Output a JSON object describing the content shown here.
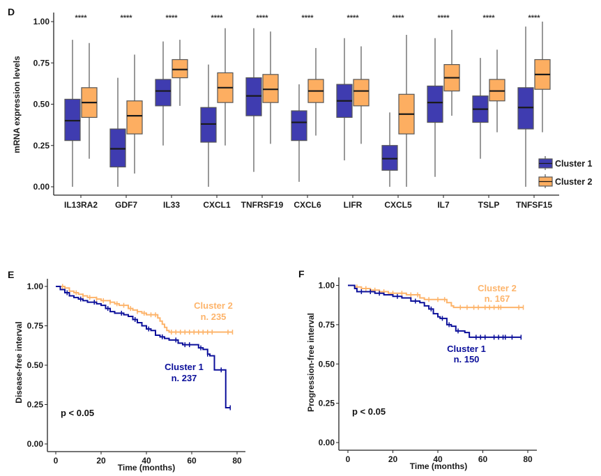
{
  "colors": {
    "cluster1": "#3f3cb0",
    "cluster2": "#fdae61",
    "km_cluster1": "#0b0f9a",
    "km_cluster2": "#fdb46b"
  },
  "chart_data": [
    {
      "id": "D",
      "type": "box",
      "panel_label": "D",
      "title": "",
      "xlabel": "",
      "ylabel": "mRNA expression levels",
      "ylim": [
        0,
        1
      ],
      "yticks": [
        "0.00",
        "0.25",
        "0.50",
        "0.75",
        "1.00"
      ],
      "ytick_values": [
        0,
        0.25,
        0.5,
        0.75,
        1.0
      ],
      "legend": {
        "position": "bottom-right",
        "entries": [
          "Cluster 1",
          "Cluster 2"
        ]
      },
      "categories": [
        "IL13RA2",
        "GDF7",
        "IL33",
        "CXCL1",
        "TNFRSF19",
        "CXCL6",
        "LIFR",
        "CXCL5",
        "IL7",
        "TSLP",
        "TNFSF15"
      ],
      "significance": [
        "****",
        "****",
        "****",
        "****",
        "****",
        "****",
        "****",
        "****",
        "****",
        "****",
        "****"
      ],
      "series": [
        {
          "name": "Cluster 1",
          "boxes": [
            {
              "min": 0.0,
              "q1": 0.28,
              "median": 0.4,
              "q3": 0.53,
              "max": 0.89
            },
            {
              "min": 0.0,
              "q1": 0.12,
              "median": 0.23,
              "q3": 0.35,
              "max": 0.66
            },
            {
              "min": 0.25,
              "q1": 0.49,
              "median": 0.58,
              "q3": 0.65,
              "max": 0.88
            },
            {
              "min": 0.0,
              "q1": 0.27,
              "median": 0.38,
              "q3": 0.48,
              "max": 0.74
            },
            {
              "min": 0.09,
              "q1": 0.43,
              "median": 0.55,
              "q3": 0.66,
              "max": 0.96
            },
            {
              "min": 0.03,
              "q1": 0.28,
              "median": 0.39,
              "q3": 0.46,
              "max": 0.62
            },
            {
              "min": 0.16,
              "q1": 0.42,
              "median": 0.52,
              "q3": 0.62,
              "max": 0.9
            },
            {
              "min": 0.0,
              "q1": 0.1,
              "median": 0.17,
              "q3": 0.25,
              "max": 0.45
            },
            {
              "min": 0.06,
              "q1": 0.39,
              "median": 0.51,
              "q3": 0.61,
              "max": 0.9
            },
            {
              "min": 0.17,
              "q1": 0.39,
              "median": 0.47,
              "q3": 0.55,
              "max": 0.78
            },
            {
              "min": 0.0,
              "q1": 0.35,
              "median": 0.48,
              "q3": 0.6,
              "max": 0.97
            }
          ]
        },
        {
          "name": "Cluster 2",
          "boxes": [
            {
              "min": 0.17,
              "q1": 0.42,
              "median": 0.51,
              "q3": 0.6,
              "max": 0.87
            },
            {
              "min": 0.08,
              "q1": 0.32,
              "median": 0.43,
              "q3": 0.52,
              "max": 0.8
            },
            {
              "min": 0.49,
              "q1": 0.66,
              "median": 0.71,
              "q3": 0.77,
              "max": 0.89
            },
            {
              "min": 0.25,
              "q1": 0.51,
              "median": 0.6,
              "q3": 0.69,
              "max": 0.96
            },
            {
              "min": 0.26,
              "q1": 0.51,
              "median": 0.59,
              "q3": 0.68,
              "max": 0.94
            },
            {
              "min": 0.31,
              "q1": 0.51,
              "median": 0.58,
              "q3": 0.65,
              "max": 0.84
            },
            {
              "min": 0.26,
              "q1": 0.49,
              "median": 0.58,
              "q3": 0.65,
              "max": 0.85
            },
            {
              "min": 0.0,
              "q1": 0.32,
              "median": 0.44,
              "q3": 0.56,
              "max": 0.92
            },
            {
              "min": 0.43,
              "q1": 0.58,
              "median": 0.66,
              "q3": 0.74,
              "max": 0.95
            },
            {
              "min": 0.33,
              "q1": 0.52,
              "median": 0.58,
              "q3": 0.65,
              "max": 0.83
            },
            {
              "min": 0.33,
              "q1": 0.59,
              "median": 0.68,
              "q3": 0.77,
              "max": 1.0
            }
          ]
        }
      ]
    },
    {
      "id": "E",
      "type": "line",
      "subtype": "kaplan-meier",
      "panel_label": "E",
      "xlabel": "Time (months)",
      "ylabel": "Disease-free interval",
      "xlim": [
        0,
        80
      ],
      "ylim": [
        0,
        1
      ],
      "xticks": [
        "0",
        "20",
        "40",
        "60",
        "80"
      ],
      "xtick_values": [
        0,
        20,
        40,
        60,
        80
      ],
      "yticks": [
        "0.00",
        "0.25",
        "0.50",
        "0.75",
        "1.00"
      ],
      "ytick_values": [
        0,
        0.25,
        0.5,
        0.75,
        1.0
      ],
      "annotation": "p < 0.05",
      "series": [
        {
          "name": "Cluster 2",
          "label_line1": "Cluster 2",
          "label_line2": "n. 235",
          "n": 235,
          "x": [
            0,
            2,
            4,
            6,
            8,
            10,
            12,
            14,
            16,
            18,
            20,
            22,
            24,
            26,
            28,
            30,
            32,
            34,
            36,
            38,
            40,
            42,
            44,
            45,
            46,
            47,
            48,
            49,
            50,
            55,
            60,
            65,
            70,
            75,
            78
          ],
          "y": [
            1.0,
            1.0,
            0.99,
            0.97,
            0.96,
            0.95,
            0.94,
            0.93,
            0.93,
            0.92,
            0.91,
            0.91,
            0.9,
            0.89,
            0.88,
            0.88,
            0.86,
            0.85,
            0.84,
            0.83,
            0.82,
            0.82,
            0.82,
            0.8,
            0.78,
            0.76,
            0.74,
            0.72,
            0.71,
            0.71,
            0.71,
            0.71,
            0.71,
            0.71,
            0.71
          ],
          "censor_x": [
            3,
            6,
            9,
            12,
            15,
            18,
            21,
            24,
            27,
            30,
            33,
            36,
            39,
            42,
            44,
            51,
            53,
            55,
            57,
            59,
            61,
            63,
            65,
            67,
            69,
            76,
            78
          ]
        },
        {
          "name": "Cluster 1",
          "label_line1": "Cluster 1",
          "label_line2": "n. 237",
          "n": 237,
          "x": [
            0,
            2,
            4,
            6,
            8,
            10,
            12,
            14,
            16,
            18,
            20,
            22,
            24,
            26,
            28,
            30,
            32,
            34,
            36,
            38,
            40,
            42,
            44,
            46,
            48,
            50,
            52,
            54,
            56,
            60,
            63,
            65,
            67,
            68,
            70,
            72,
            74,
            75,
            77
          ],
          "y": [
            1.0,
            0.98,
            0.96,
            0.94,
            0.93,
            0.92,
            0.91,
            0.9,
            0.9,
            0.89,
            0.88,
            0.86,
            0.84,
            0.83,
            0.83,
            0.82,
            0.81,
            0.79,
            0.77,
            0.75,
            0.73,
            0.72,
            0.69,
            0.68,
            0.67,
            0.66,
            0.66,
            0.64,
            0.63,
            0.63,
            0.61,
            0.6,
            0.57,
            0.56,
            0.47,
            0.47,
            0.47,
            0.23,
            0.23
          ],
          "censor_x": [
            5,
            11,
            17,
            23,
            29,
            35,
            41,
            47,
            53,
            57,
            59,
            64,
            67,
            73,
            77
          ]
        }
      ]
    },
    {
      "id": "F",
      "type": "line",
      "subtype": "kaplan-meier",
      "panel_label": "F",
      "xlabel": "Time (months)",
      "ylabel": "Progression-free interval",
      "xlim": [
        0,
        80
      ],
      "ylim": [
        0,
        1
      ],
      "xticks": [
        "0",
        "20",
        "40",
        "60",
        "80"
      ],
      "xtick_values": [
        0,
        20,
        40,
        60,
        80
      ],
      "yticks": [
        "0.00",
        "0.25",
        "0.50",
        "0.75",
        "1.00"
      ],
      "ytick_values": [
        0,
        0.25,
        0.5,
        0.75,
        1.0
      ],
      "annotation": "p < 0.05",
      "series": [
        {
          "name": "Cluster 2",
          "label_line1": "Cluster 2",
          "label_line2": "n. 167",
          "n": 167,
          "x": [
            0,
            3,
            6,
            10,
            14,
            18,
            22,
            26,
            30,
            32,
            34,
            38,
            42,
            44,
            46,
            47,
            48,
            55,
            60,
            65,
            70,
            75,
            78
          ],
          "y": [
            1.0,
            0.99,
            0.98,
            0.97,
            0.96,
            0.95,
            0.95,
            0.94,
            0.94,
            0.92,
            0.91,
            0.91,
            0.91,
            0.89,
            0.87,
            0.86,
            0.86,
            0.86,
            0.86,
            0.86,
            0.86,
            0.86,
            0.86
          ],
          "censor_x": [
            4,
            8,
            12,
            16,
            20,
            24,
            28,
            31,
            36,
            40,
            43,
            50,
            53,
            56,
            58,
            61,
            63,
            65,
            67,
            68,
            76,
            78
          ]
        },
        {
          "name": "Cluster 1",
          "label_line1": "Cluster 1",
          "label_line2": "n. 150",
          "n": 150,
          "x": [
            0,
            2,
            3,
            4,
            8,
            12,
            16,
            20,
            24,
            28,
            32,
            34,
            36,
            38,
            40,
            41,
            44,
            46,
            48,
            50,
            52,
            54,
            56,
            60,
            65,
            70,
            75,
            77
          ],
          "y": [
            1.0,
            1.0,
            0.98,
            0.96,
            0.96,
            0.95,
            0.94,
            0.93,
            0.92,
            0.9,
            0.89,
            0.87,
            0.85,
            0.82,
            0.8,
            0.79,
            0.75,
            0.74,
            0.71,
            0.71,
            0.7,
            0.67,
            0.67,
            0.67,
            0.67,
            0.67,
            0.67,
            0.67
          ],
          "censor_x": [
            6,
            10,
            14,
            22,
            30,
            37,
            42,
            45,
            49,
            57,
            59,
            61,
            65,
            67,
            69,
            70,
            73,
            77
          ]
        }
      ]
    }
  ]
}
